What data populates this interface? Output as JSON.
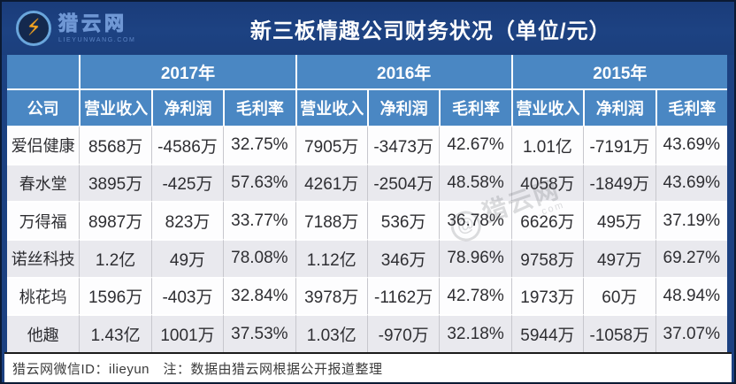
{
  "brand": {
    "logo_text": "猎云网",
    "logo_domain": "LIEYUNWANG.COM"
  },
  "title": "新三板情趣公司财务状况（单位/元）",
  "chart_data": {
    "type": "table",
    "title": "新三板情趣公司财务状况（单位/元）",
    "corner_label": "公司",
    "unit": "元",
    "year_groups": [
      {
        "year": "2017年",
        "columns": [
          "营业收入",
          "净利润",
          "毛利率"
        ]
      },
      {
        "year": "2016年",
        "columns": [
          "营业收入",
          "净利润",
          "毛利率"
        ]
      },
      {
        "year": "2015年",
        "columns": [
          "营业收入",
          "净利润",
          "毛利率"
        ]
      }
    ],
    "rows": [
      {
        "company": "爱侣健康",
        "values": [
          "8568万",
          "-4586万",
          "32.75%",
          "7905万",
          "-3473万",
          "42.67%",
          "1.01亿",
          "-7191万",
          "43.69%"
        ]
      },
      {
        "company": "春水堂",
        "values": [
          "3895万",
          "-425万",
          "57.63%",
          "4261万",
          "-2504万",
          "48.58%",
          "4058万",
          "-1849万",
          "43.69%"
        ]
      },
      {
        "company": "万得福",
        "values": [
          "8987万",
          "823万",
          "33.77%",
          "7188万",
          "536万",
          "36.78%",
          "6626万",
          "495万",
          "37.19%"
        ]
      },
      {
        "company": "诺丝科技",
        "values": [
          "1.2亿",
          "49万",
          "78.08%",
          "1.12亿",
          "346万",
          "78.96%",
          "9758万",
          "497万",
          "69.27%"
        ]
      },
      {
        "company": "桃花坞",
        "values": [
          "1596万",
          "-403万",
          "32.84%",
          "3978万",
          "-1162万",
          "42.78%",
          "1973万",
          "60万",
          "48.94%"
        ]
      },
      {
        "company": "他趣",
        "values": [
          "1.43亿",
          "1001万",
          "37.53%",
          "1.03亿",
          "-970万",
          "32.18%",
          "5944万",
          "-1058万",
          "37.07%"
        ]
      }
    ]
  },
  "watermark": {
    "prefix": "@",
    "text": "猎云网",
    "suffix": ".com"
  },
  "footer": {
    "text": "猎云网微信ID：ilieyun　注：数据由猎云网根据公开报道整理"
  },
  "colors": {
    "banner_navy": "#1c4181",
    "header_blue": "#4a87c3",
    "row_alt_gray": "#e9e9ee",
    "row_white": "#fdfdfe",
    "accent_orange": "#f6a521"
  }
}
